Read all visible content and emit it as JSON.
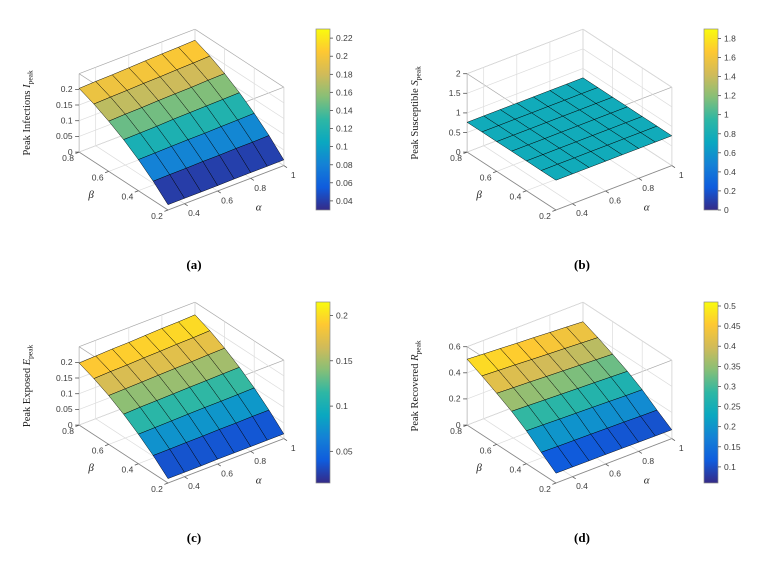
{
  "figure": {
    "background": "#ffffff",
    "description": "2x2 grid of 3D surface plots of epidemic peak values versus beta and alpha"
  },
  "colormap": {
    "name": "parula",
    "stops": [
      "#352a87",
      "#0f5cdd",
      "#1481d6",
      "#0aa8c0",
      "#2eb7a4",
      "#87bf77",
      "#d1bb59",
      "#fec832",
      "#f9fb0e"
    ]
  },
  "chart_data": [
    {
      "id": "a",
      "type": "surface",
      "caption": "(a)",
      "zlabel_prefix": "Peak Infections ",
      "zlabel_var": "I",
      "zlabel_sub": "peak",
      "xlabel": "α",
      "ylabel": "β",
      "alpha": [
        0.3,
        0.4,
        0.5,
        0.6,
        0.7,
        0.8,
        0.9,
        1.0
      ],
      "beta": [
        0.2,
        0.3,
        0.4,
        0.5,
        0.6,
        0.7,
        0.8
      ],
      "z": [
        [
          0.017,
          0.017,
          0.017,
          0.017,
          0.018,
          0.018,
          0.018,
          0.018
        ],
        [
          0.061,
          0.062,
          0.062,
          0.063,
          0.063,
          0.064,
          0.064,
          0.065
        ],
        [
          0.099,
          0.1,
          0.101,
          0.102,
          0.102,
          0.103,
          0.104,
          0.105
        ],
        [
          0.132,
          0.133,
          0.134,
          0.136,
          0.137,
          0.138,
          0.139,
          0.14
        ],
        [
          0.16,
          0.162,
          0.163,
          0.165,
          0.166,
          0.167,
          0.169,
          0.17
        ],
        [
          0.184,
          0.186,
          0.187,
          0.189,
          0.19,
          0.192,
          0.193,
          0.195
        ],
        [
          0.203,
          0.205,
          0.206,
          0.208,
          0.21,
          0.212,
          0.213,
          0.215
        ]
      ],
      "xlim": [
        0.3,
        1
      ],
      "ylim": [
        0.2,
        0.8
      ],
      "zlim": [
        0,
        0.25
      ],
      "xticks": [
        0.4,
        0.6,
        0.8,
        1
      ],
      "yticks": [
        0.2,
        0.4,
        0.6,
        0.8
      ],
      "zticks": [
        0,
        0.05,
        0.1,
        0.15,
        0.2
      ],
      "clim": [
        0.03,
        0.23
      ],
      "cticks": [
        0.04,
        0.06,
        0.08,
        0.1,
        0.12,
        0.14,
        0.16,
        0.18,
        0.2,
        0.22
      ]
    },
    {
      "id": "b",
      "type": "surface",
      "caption": "(b)",
      "zlabel_prefix": "Peak Susceptible ",
      "zlabel_var": "S",
      "zlabel_sub": "peak",
      "xlabel": "α",
      "ylabel": "β",
      "alpha": [
        0.3,
        0.4,
        0.5,
        0.6,
        0.7,
        0.8,
        0.9,
        1.0
      ],
      "beta": [
        0.2,
        0.3,
        0.4,
        0.5,
        0.6,
        0.7,
        0.8
      ],
      "z": [
        [
          0.76,
          0.76,
          0.76,
          0.76,
          0.76,
          0.76,
          0.76,
          0.76
        ],
        [
          0.76,
          0.76,
          0.76,
          0.76,
          0.76,
          0.76,
          0.76,
          0.76
        ],
        [
          0.76,
          0.76,
          0.76,
          0.76,
          0.76,
          0.76,
          0.76,
          0.76
        ],
        [
          0.76,
          0.76,
          0.76,
          0.76,
          0.76,
          0.76,
          0.76,
          0.76
        ],
        [
          0.76,
          0.76,
          0.76,
          0.76,
          0.76,
          0.76,
          0.76,
          0.76
        ],
        [
          0.76,
          0.76,
          0.76,
          0.76,
          0.76,
          0.76,
          0.76,
          0.76
        ],
        [
          0.76,
          0.76,
          0.76,
          0.76,
          0.76,
          0.76,
          0.76,
          0.76
        ]
      ],
      "xlim": [
        0.3,
        1
      ],
      "ylim": [
        0.2,
        0.8
      ],
      "zlim": [
        0,
        2
      ],
      "xticks": [
        0.4,
        0.6,
        0.8,
        1
      ],
      "yticks": [
        0.2,
        0.4,
        0.6,
        0.8
      ],
      "zticks": [
        0,
        0.5,
        1,
        1.5,
        2
      ],
      "clim": [
        0,
        1.9
      ],
      "cticks": [
        0,
        0.2,
        0.4,
        0.6,
        0.8,
        1,
        1.2,
        1.4,
        1.6,
        1.8
      ]
    },
    {
      "id": "c",
      "type": "surface",
      "caption": "(c)",
      "zlabel_prefix": "Peak Exposed ",
      "zlabel_var": "E",
      "zlabel_sub": "peak",
      "xlabel": "α",
      "ylabel": "β",
      "alpha": [
        0.3,
        0.4,
        0.5,
        0.6,
        0.7,
        0.8,
        0.9,
        1.0
      ],
      "beta": [
        0.2,
        0.3,
        0.4,
        0.5,
        0.6,
        0.7,
        0.8
      ],
      "z": [
        [
          0.014,
          0.014,
          0.014,
          0.015,
          0.015,
          0.015,
          0.015,
          0.015
        ],
        [
          0.057,
          0.057,
          0.058,
          0.058,
          0.059,
          0.059,
          0.06,
          0.06
        ],
        [
          0.094,
          0.095,
          0.096,
          0.097,
          0.098,
          0.098,
          0.099,
          0.1
        ],
        [
          0.127,
          0.129,
          0.13,
          0.131,
          0.132,
          0.133,
          0.134,
          0.135
        ],
        [
          0.156,
          0.157,
          0.158,
          0.16,
          0.161,
          0.162,
          0.164,
          0.165
        ],
        [
          0.179,
          0.181,
          0.182,
          0.184,
          0.185,
          0.187,
          0.188,
          0.19
        ],
        [
          0.198,
          0.2,
          0.202,
          0.203,
          0.205,
          0.207,
          0.208,
          0.21
        ]
      ],
      "xlim": [
        0.3,
        1
      ],
      "ylim": [
        0.2,
        0.8
      ],
      "zlim": [
        0,
        0.25
      ],
      "xticks": [
        0.4,
        0.6,
        0.8,
        1
      ],
      "yticks": [
        0.2,
        0.4,
        0.6,
        0.8
      ],
      "zticks": [
        0,
        0.05,
        0.1,
        0.15,
        0.2
      ],
      "clim": [
        0.015,
        0.215
      ],
      "cticks": [
        0.05,
        0.1,
        0.15,
        0.2
      ]
    },
    {
      "id": "d",
      "type": "surface",
      "caption": "(d)",
      "zlabel_prefix": "Peak Recovered ",
      "zlabel_var": "R",
      "zlabel_sub": "peak",
      "xlabel": "α",
      "ylabel": "β",
      "alpha": [
        0.3,
        0.4,
        0.5,
        0.6,
        0.7,
        0.8,
        0.9,
        1.0
      ],
      "beta": [
        0.2,
        0.3,
        0.4,
        0.5,
        0.6,
        0.7,
        0.8
      ],
      "z": [
        [
          0.075,
          0.074,
          0.073,
          0.072,
          0.071,
          0.069,
          0.068,
          0.067
        ],
        [
          0.161,
          0.158,
          0.156,
          0.154,
          0.151,
          0.149,
          0.146,
          0.144
        ],
        [
          0.252,
          0.248,
          0.244,
          0.241,
          0.237,
          0.233,
          0.229,
          0.226
        ],
        [
          0.327,
          0.322,
          0.317,
          0.312,
          0.307,
          0.303,
          0.298,
          0.293
        ],
        [
          0.391,
          0.385,
          0.38,
          0.374,
          0.368,
          0.362,
          0.356,
          0.35
        ],
        [
          0.45,
          0.444,
          0.437,
          0.43,
          0.423,
          0.417,
          0.41,
          0.403
        ],
        [
          0.504,
          0.496,
          0.489,
          0.481,
          0.474,
          0.466,
          0.459,
          0.451
        ]
      ],
      "xlim": [
        0.3,
        1
      ],
      "ylim": [
        0.2,
        0.8
      ],
      "zlim": [
        0,
        0.6
      ],
      "xticks": [
        0.4,
        0.6,
        0.8,
        1
      ],
      "yticks": [
        0.2,
        0.4,
        0.6,
        0.8
      ],
      "zticks": [
        0,
        0.2,
        0.4,
        0.6
      ],
      "clim": [
        0.06,
        0.51
      ],
      "cticks": [
        0.1,
        0.15,
        0.2,
        0.25,
        0.3,
        0.35,
        0.4,
        0.45,
        0.5
      ]
    }
  ]
}
